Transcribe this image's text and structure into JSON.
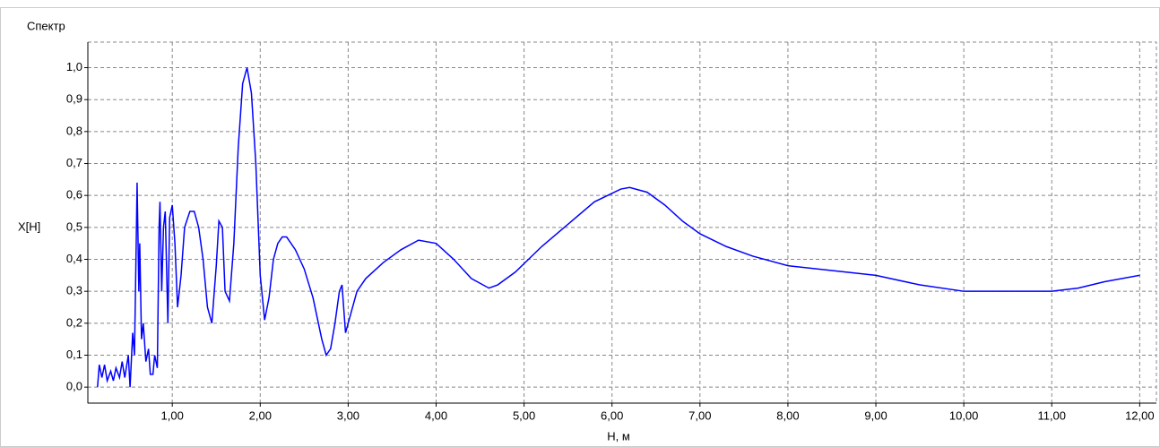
{
  "chart_data": {
    "type": "line",
    "title": "Спектр",
    "x_label": "H, м",
    "y_label": "X[H]",
    "color": "#0000ff",
    "grid": true,
    "xlim": [
      0.04,
      12.19
    ],
    "ylim": [
      -0.05,
      1.08
    ],
    "xticks": [
      {
        "value": 1,
        "label": "1,00"
      },
      {
        "value": 2,
        "label": "2,00"
      },
      {
        "value": 3,
        "label": "3,00"
      },
      {
        "value": 4,
        "label": "4,00"
      },
      {
        "value": 5,
        "label": "5,00"
      },
      {
        "value": 6,
        "label": "6,00"
      },
      {
        "value": 7,
        "label": "7,00"
      },
      {
        "value": 8,
        "label": "8,00"
      },
      {
        "value": 9,
        "label": "9,00"
      },
      {
        "value": 10,
        "label": "10,00"
      },
      {
        "value": 11,
        "label": "11,00"
      },
      {
        "value": 12,
        "label": "12,00"
      }
    ],
    "yticks": [
      {
        "value": 0,
        "label": "0,0"
      },
      {
        "value": 0.1,
        "label": "0,1"
      },
      {
        "value": 0.2,
        "label": "0,2"
      },
      {
        "value": 0.3,
        "label": "0,3"
      },
      {
        "value": 0.4,
        "label": "0,4"
      },
      {
        "value": 0.5,
        "label": "0,5"
      },
      {
        "value": 0.6,
        "label": "0,6"
      },
      {
        "value": 0.7,
        "label": "0,7"
      },
      {
        "value": 0.8,
        "label": "0,8"
      },
      {
        "value": 0.9,
        "label": "0,9"
      },
      {
        "value": 1,
        "label": "1,0"
      }
    ],
    "x": [
      0.15,
      0.17,
      0.2,
      0.23,
      0.26,
      0.3,
      0.33,
      0.36,
      0.4,
      0.43,
      0.46,
      0.5,
      0.52,
      0.55,
      0.57,
      0.59,
      0.6,
      0.62,
      0.63,
      0.65,
      0.67,
      0.7,
      0.73,
      0.75,
      0.78,
      0.8,
      0.83,
      0.85,
      0.86,
      0.88,
      0.9,
      0.92,
      0.95,
      0.97,
      1.0,
      1.03,
      1.06,
      1.1,
      1.14,
      1.2,
      1.25,
      1.3,
      1.35,
      1.4,
      1.45,
      1.5,
      1.53,
      1.57,
      1.6,
      1.65,
      1.7,
      1.75,
      1.8,
      1.85,
      1.9,
      1.95,
      2.0,
      2.05,
      2.1,
      2.15,
      2.2,
      2.25,
      2.3,
      2.4,
      2.5,
      2.6,
      2.7,
      2.75,
      2.8,
      2.85,
      2.9,
      2.93,
      2.97,
      3.0,
      3.1,
      3.2,
      3.4,
      3.6,
      3.8,
      4.0,
      4.2,
      4.4,
      4.6,
      4.7,
      4.9,
      5.2,
      5.5,
      5.8,
      6.1,
      6.2,
      6.4,
      6.6,
      6.8,
      7.0,
      7.3,
      7.6,
      8.0,
      8.5,
      9.0,
      9.5,
      10.0,
      10.5,
      11.0,
      11.3,
      11.6,
      12.0
    ],
    "values": [
      0.0,
      0.07,
      0.03,
      0.07,
      0.02,
      0.05,
      0.02,
      0.06,
      0.03,
      0.08,
      0.03,
      0.1,
      0.0,
      0.17,
      0.1,
      0.45,
      0.64,
      0.3,
      0.45,
      0.15,
      0.2,
      0.08,
      0.12,
      0.04,
      0.04,
      0.1,
      0.06,
      0.5,
      0.58,
      0.3,
      0.5,
      0.55,
      0.2,
      0.53,
      0.57,
      0.45,
      0.25,
      0.35,
      0.5,
      0.55,
      0.55,
      0.5,
      0.4,
      0.25,
      0.2,
      0.38,
      0.52,
      0.5,
      0.3,
      0.27,
      0.45,
      0.75,
      0.95,
      1.0,
      0.92,
      0.7,
      0.35,
      0.21,
      0.28,
      0.4,
      0.45,
      0.47,
      0.47,
      0.43,
      0.37,
      0.28,
      0.15,
      0.1,
      0.12,
      0.2,
      0.3,
      0.32,
      0.17,
      0.2,
      0.3,
      0.34,
      0.39,
      0.43,
      0.46,
      0.45,
      0.4,
      0.34,
      0.31,
      0.32,
      0.36,
      0.44,
      0.51,
      0.58,
      0.62,
      0.625,
      0.61,
      0.57,
      0.52,
      0.48,
      0.44,
      0.41,
      0.38,
      0.365,
      0.35,
      0.32,
      0.3,
      0.3,
      0.3,
      0.31,
      0.33,
      0.35
    ]
  }
}
